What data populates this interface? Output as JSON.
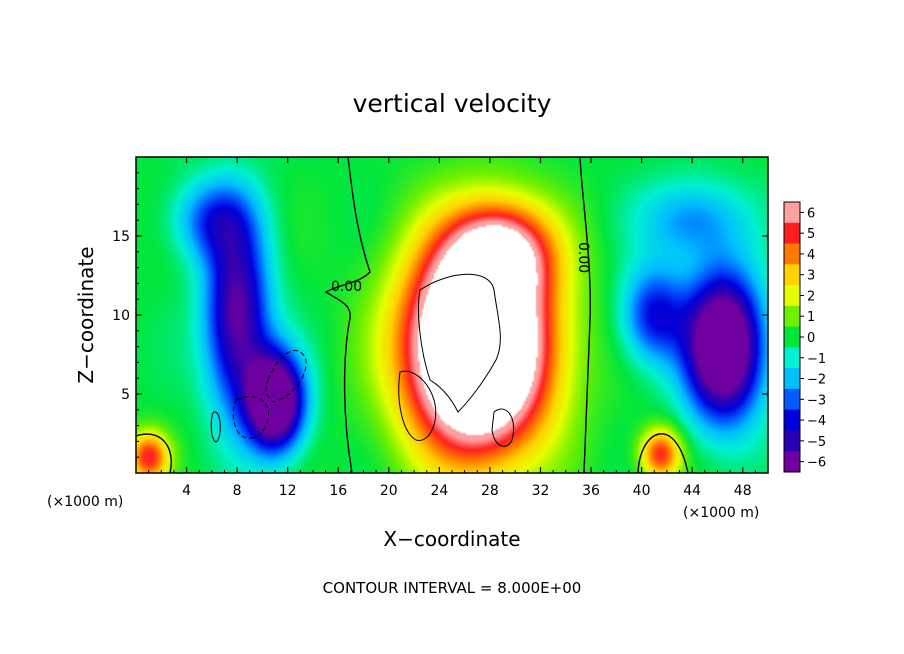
{
  "chart_data": {
    "type": "heatmap",
    "title": "vertical velocity",
    "xlabel": "X−coordinate",
    "ylabel": "Z−coordinate",
    "x_units": "(×1000 m)",
    "y_units": "(×1000 m)",
    "xlim": [
      0,
      50
    ],
    "ylim": [
      0,
      20
    ],
    "x_ticks": [
      4,
      8,
      12,
      16,
      20,
      24,
      28,
      32,
      36,
      40,
      44,
      48
    ],
    "y_ticks": [
      5,
      10,
      15
    ],
    "colorbar": {
      "levels": [
        6,
        5,
        4,
        3,
        2,
        1,
        0,
        -1,
        -2,
        -3,
        -4,
        -5,
        -6
      ],
      "level_labels": [
        "6",
        "5",
        "4",
        "3",
        "2",
        "1",
        "0",
        "−1",
        "−2",
        "−3",
        "−4",
        "−5",
        "−6"
      ],
      "range": [
        -6,
        6
      ]
    },
    "contour_label": "0.00",
    "footer": "CONTOUR INTERVAL = 8.000E+00",
    "features": [
      {
        "kind": "updraft",
        "x": 27,
        "z": 8,
        "sx": 5.5,
        "sy": 6.5,
        "amp": 14
      },
      {
        "kind": "updraft",
        "x": 29,
        "z": 14,
        "sx": 4.0,
        "sy": 3.0,
        "amp": 5
      },
      {
        "kind": "updraft",
        "x": 1,
        "z": 1,
        "sx": 1.6,
        "sy": 1.6,
        "amp": 5
      },
      {
        "kind": "updraft",
        "x": 41.5,
        "z": 1.2,
        "sx": 1.6,
        "sy": 1.6,
        "amp": 5
      },
      {
        "kind": "downdraft",
        "x": 8,
        "z": 10,
        "sx": 2.5,
        "sy": 6.0,
        "amp": -6
      },
      {
        "kind": "downdraft",
        "x": 11,
        "z": 4.5,
        "sx": 2.2,
        "sy": 3.0,
        "amp": -9
      },
      {
        "kind": "downdraft",
        "x": 46.5,
        "z": 8,
        "sx": 3.0,
        "sy": 4.5,
        "amp": -9
      },
      {
        "kind": "downdraft",
        "x": 41,
        "z": 10,
        "sx": 2.5,
        "sy": 3.0,
        "amp": -4
      },
      {
        "kind": "downdraft",
        "x": 44,
        "z": 16,
        "sx": 4.0,
        "sy": 2.5,
        "amp": -2.5
      },
      {
        "kind": "downdraft",
        "x": 6,
        "z": 16,
        "sx": 3.0,
        "sy": 2.5,
        "amp": -3
      }
    ]
  }
}
